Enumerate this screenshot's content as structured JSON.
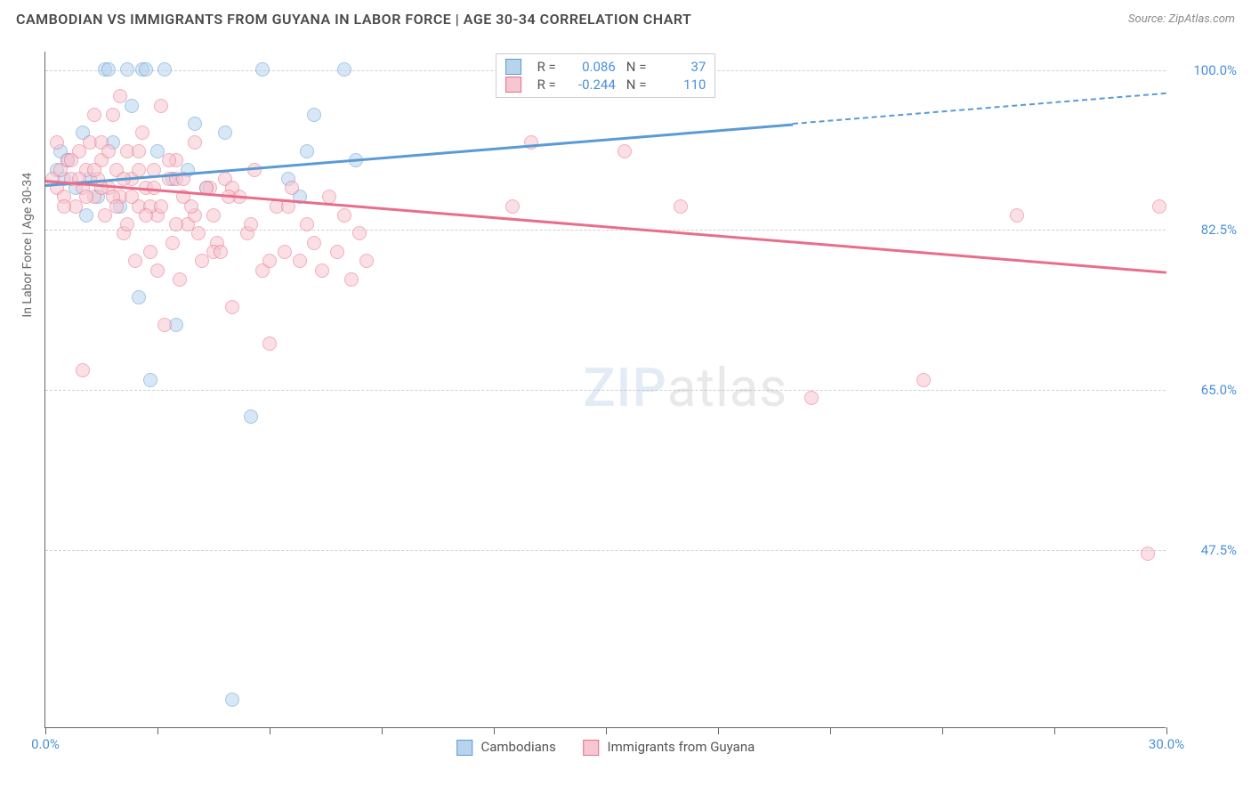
{
  "header": {
    "title": "CAMBODIAN VS IMMIGRANTS FROM GUYANA IN LABOR FORCE | AGE 30-34 CORRELATION CHART",
    "source": "Source: ZipAtlas.com"
  },
  "chart": {
    "type": "scatter",
    "ylabel": "In Labor Force | Age 30-34",
    "xlim": [
      0,
      30
    ],
    "ylim": [
      28,
      102
    ],
    "yticks": [
      47.5,
      65.0,
      82.5,
      100.0
    ],
    "ytick_labels": [
      "47.5%",
      "65.0%",
      "82.5%",
      "100.0%"
    ],
    "xticks": [
      0,
      3,
      6,
      9,
      12,
      15,
      18,
      21,
      24,
      27,
      30
    ],
    "x_start_label": "0.0%",
    "x_end_label": "30.0%",
    "grid_color": "#d0d0d0",
    "axis_color": "#666666",
    "tick_label_color": "#4a90d9",
    "background_color": "#ffffff",
    "series": [
      {
        "name": "Cambodians",
        "color_fill": "#b8d4ed",
        "color_stroke": "#5a9bd5",
        "r": 0.086,
        "n": 37,
        "trend": {
          "x1": 0,
          "y1": 87.5,
          "x2": 30,
          "y2": 97.5,
          "dash_after_x": 20
        },
        "points": [
          [
            0.3,
            89
          ],
          [
            0.5,
            88
          ],
          [
            0.6,
            90
          ],
          [
            0.8,
            87
          ],
          [
            1.0,
            93
          ],
          [
            1.2,
            88
          ],
          [
            1.4,
            86
          ],
          [
            1.6,
            100
          ],
          [
            1.7,
            100
          ],
          [
            1.8,
            92
          ],
          [
            2.0,
            85
          ],
          [
            2.2,
            100
          ],
          [
            2.3,
            96
          ],
          [
            2.5,
            75
          ],
          [
            2.6,
            100
          ],
          [
            2.7,
            100
          ],
          [
            2.8,
            66
          ],
          [
            3.0,
            91
          ],
          [
            3.2,
            100
          ],
          [
            3.4,
            88
          ],
          [
            3.5,
            72
          ],
          [
            3.8,
            89
          ],
          [
            4.0,
            94
          ],
          [
            4.3,
            87
          ],
          [
            4.8,
            93
          ],
          [
            5.0,
            31
          ],
          [
            5.5,
            62
          ],
          [
            5.8,
            100
          ],
          [
            6.5,
            88
          ],
          [
            6.8,
            86
          ],
          [
            7.0,
            91
          ],
          [
            7.2,
            95
          ],
          [
            8.0,
            100
          ],
          [
            8.3,
            90
          ],
          [
            17.5,
            100
          ],
          [
            1.1,
            84
          ],
          [
            0.4,
            91
          ]
        ]
      },
      {
        "name": "Immigrants from Guyana",
        "color_fill": "#f6c6d1",
        "color_stroke": "#e86e8a",
        "r": -0.244,
        "n": 110,
        "trend": {
          "x1": 0,
          "y1": 88,
          "x2": 30,
          "y2": 78,
          "dash_after_x": 30
        },
        "points": [
          [
            0.2,
            88
          ],
          [
            0.3,
            87
          ],
          [
            0.4,
            89
          ],
          [
            0.5,
            86
          ],
          [
            0.6,
            90
          ],
          [
            0.7,
            88
          ],
          [
            0.8,
            85
          ],
          [
            0.9,
            91
          ],
          [
            1.0,
            87
          ],
          [
            1.1,
            89
          ],
          [
            1.2,
            92
          ],
          [
            1.3,
            86
          ],
          [
            1.4,
            88
          ],
          [
            1.5,
            90
          ],
          [
            1.6,
            84
          ],
          [
            1.7,
            87
          ],
          [
            1.8,
            95
          ],
          [
            1.9,
            89
          ],
          [
            2.0,
            86
          ],
          [
            2.1,
            82
          ],
          [
            2.2,
            91
          ],
          [
            2.3,
            88
          ],
          [
            2.4,
            79
          ],
          [
            2.5,
            85
          ],
          [
            2.6,
            93
          ],
          [
            2.7,
            87
          ],
          [
            2.8,
            80
          ],
          [
            2.9,
            89
          ],
          [
            3.0,
            84
          ],
          [
            3.1,
            96
          ],
          [
            3.2,
            72
          ],
          [
            3.3,
            88
          ],
          [
            3.4,
            81
          ],
          [
            3.5,
            90
          ],
          [
            3.6,
            77
          ],
          [
            3.7,
            86
          ],
          [
            3.8,
            83
          ],
          [
            4.0,
            92
          ],
          [
            4.2,
            79
          ],
          [
            4.4,
            87
          ],
          [
            4.6,
            81
          ],
          [
            4.8,
            88
          ],
          [
            5.0,
            74
          ],
          [
            5.2,
            86
          ],
          [
            5.4,
            82
          ],
          [
            5.6,
            89
          ],
          [
            5.8,
            78
          ],
          [
            6.0,
            70
          ],
          [
            6.2,
            85
          ],
          [
            6.4,
            80
          ],
          [
            6.6,
            87
          ],
          [
            6.8,
            79
          ],
          [
            7.0,
            83
          ],
          [
            7.2,
            81
          ],
          [
            7.4,
            78
          ],
          [
            7.6,
            86
          ],
          [
            7.8,
            80
          ],
          [
            8.0,
            84
          ],
          [
            8.2,
            77
          ],
          [
            8.4,
            82
          ],
          [
            8.6,
            79
          ],
          [
            1.0,
            67
          ],
          [
            1.3,
            95
          ],
          [
            1.5,
            92
          ],
          [
            1.8,
            86
          ],
          [
            2.0,
            97
          ],
          [
            2.2,
            83
          ],
          [
            2.5,
            91
          ],
          [
            2.8,
            85
          ],
          [
            3.0,
            78
          ],
          [
            3.5,
            88
          ],
          [
            4.0,
            84
          ],
          [
            4.5,
            80
          ],
          [
            5.0,
            87
          ],
          [
            5.5,
            83
          ],
          [
            6.0,
            79
          ],
          [
            6.5,
            85
          ],
          [
            12.5,
            85
          ],
          [
            13.0,
            92
          ],
          [
            15.5,
            91
          ],
          [
            17.0,
            85
          ],
          [
            20.5,
            64
          ],
          [
            23.5,
            66
          ],
          [
            26.0,
            84
          ],
          [
            29.5,
            47
          ],
          [
            29.8,
            85
          ],
          [
            0.3,
            92
          ],
          [
            0.5,
            85
          ],
          [
            0.7,
            90
          ],
          [
            0.9,
            88
          ],
          [
            1.1,
            86
          ],
          [
            1.3,
            89
          ],
          [
            1.5,
            87
          ],
          [
            1.7,
            91
          ],
          [
            1.9,
            85
          ],
          [
            2.1,
            88
          ],
          [
            2.3,
            86
          ],
          [
            2.5,
            89
          ],
          [
            2.7,
            84
          ],
          [
            2.9,
            87
          ],
          [
            3.1,
            85
          ],
          [
            3.3,
            90
          ],
          [
            3.5,
            83
          ],
          [
            3.7,
            88
          ],
          [
            3.9,
            85
          ],
          [
            4.1,
            82
          ],
          [
            4.3,
            87
          ],
          [
            4.5,
            84
          ],
          [
            4.7,
            80
          ],
          [
            4.9,
            86
          ]
        ]
      }
    ],
    "bottom_legend": [
      {
        "label": "Cambodians",
        "fill": "#b8d4ed",
        "stroke": "#5a9bd5"
      },
      {
        "label": "Immigrants from Guyana",
        "fill": "#f6c6d1",
        "stroke": "#e86e8a"
      }
    ],
    "watermark": {
      "zip": "ZIP",
      "atlas": "atlas"
    }
  }
}
